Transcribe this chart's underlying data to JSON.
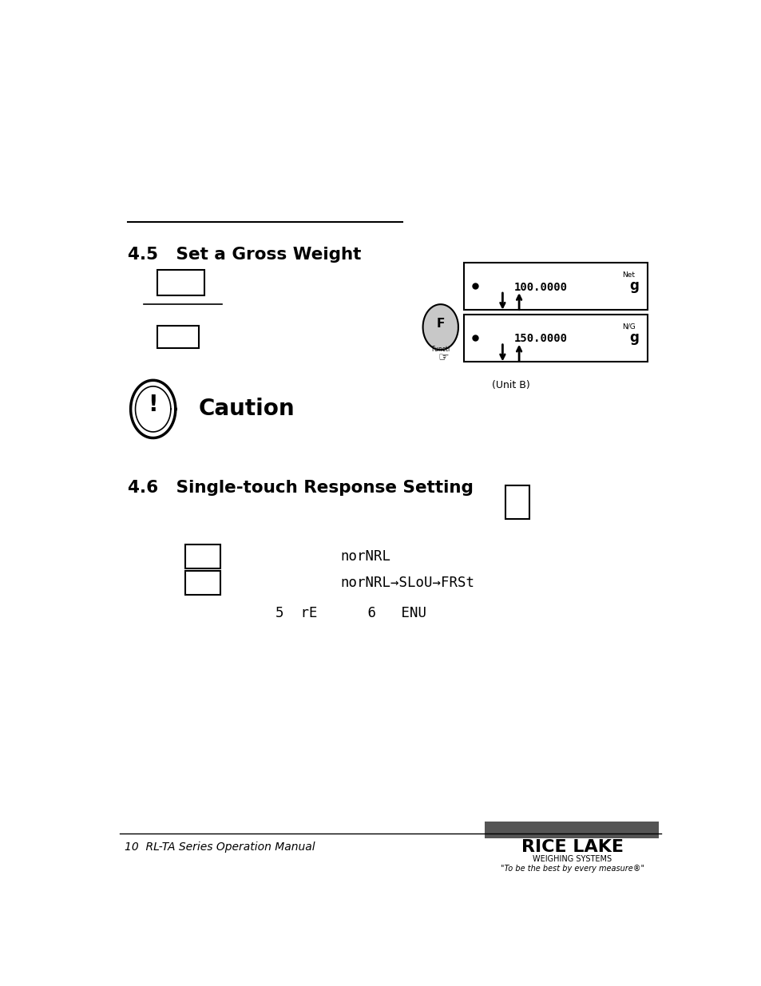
{
  "bg_color": "#ffffff",
  "page_width": 9.54,
  "page_height": 12.35,
  "section45_title": "4.5   Set a Gross Weight",
  "section46_title": "4.6   Single-touch Response Setting",
  "display1_text": "100.0000",
  "display1_unit_label": "Net",
  "display1_unit": "g",
  "display2_text": "150.0000",
  "display2_unit_label": "N/G",
  "display2_unit": "g",
  "unit_b_label": "(Unit B)",
  "nornal_text1": "norNRL",
  "nornal_text2": "norNRL→SLoU→FRSt",
  "seq_text": "5  rE      6   ENU",
  "footer_text": "10  RL-TA Series Operation Manual",
  "ricelake_top": "RICE LAKE",
  "ricelake_sub": "WEIGHING SYSTEMS",
  "ricelake_tagline": "\"To be the best by every measure®\""
}
